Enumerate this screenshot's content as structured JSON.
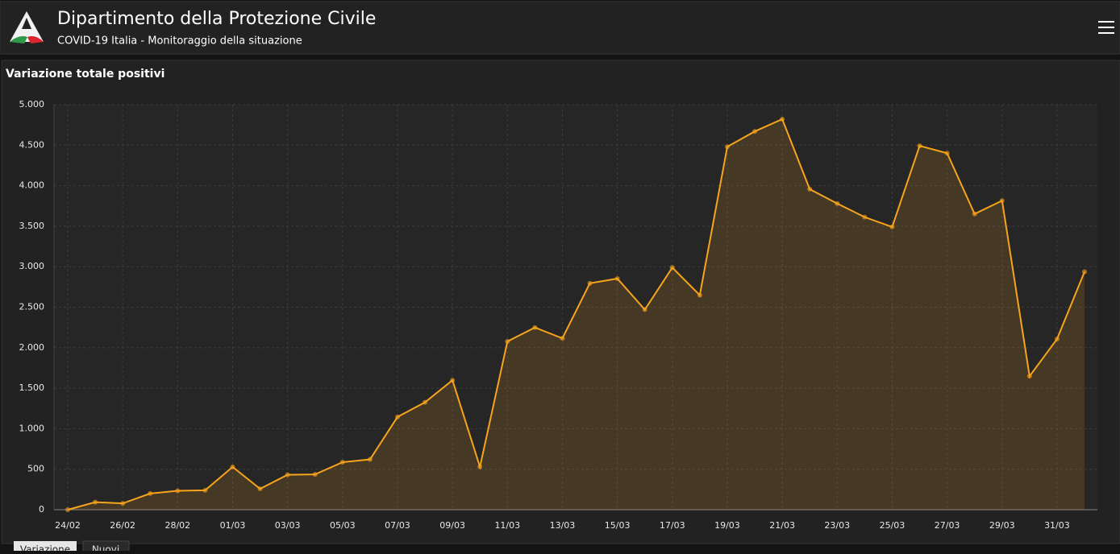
{
  "header": {
    "title": "Dipartimento della Protezione Civile",
    "subtitle": "COVID-19 Italia - Monitoraggio della situazione"
  },
  "chart_data": {
    "type": "line",
    "title": "Variazione totale positivi",
    "categories": [
      "24/02",
      null,
      "26/02",
      null,
      "28/02",
      null,
      "01/03",
      null,
      "03/03",
      null,
      "05/03",
      null,
      "07/03",
      null,
      "09/03",
      null,
      "11/03",
      null,
      "13/03",
      null,
      "15/03",
      null,
      "17/03",
      null,
      "19/03",
      null,
      "21/03",
      null,
      "23/03",
      null,
      "25/03",
      null,
      "27/03",
      null,
      "29/03",
      null,
      "31/03",
      null
    ],
    "values": [
      0,
      93,
      78,
      200,
      233,
      240,
      528,
      258,
      431,
      436,
      587,
      621,
      1145,
      1326,
      1598,
      529,
      2077,
      2249,
      2116,
      2795,
      2853,
      2470,
      2989,
      2648,
      4480,
      4670,
      4821,
      3957,
      3780,
      3612,
      3491,
      4492,
      4401,
      3651,
      3815,
      1648,
      2107,
      2937
    ],
    "color": "#f7a41d",
    "ylim": [
      0,
      5000
    ],
    "yticks": [
      0,
      500,
      {
        "value": 1000,
        "label": "1.000"
      },
      {
        "value": 1500,
        "label": "1.500"
      },
      {
        "value": 2000,
        "label": "2.000"
      },
      {
        "value": 2500,
        "label": "2.500"
      },
      {
        "value": 3000,
        "label": "3.000"
      },
      {
        "value": 3500,
        "label": "3.500"
      },
      {
        "value": 4000,
        "label": "4.000"
      },
      {
        "value": 4500,
        "label": "4.500"
      },
      {
        "value": 5000,
        "label": "5.000"
      }
    ],
    "grid": true
  },
  "tabs": [
    "Variazione",
    "Nuovi"
  ]
}
